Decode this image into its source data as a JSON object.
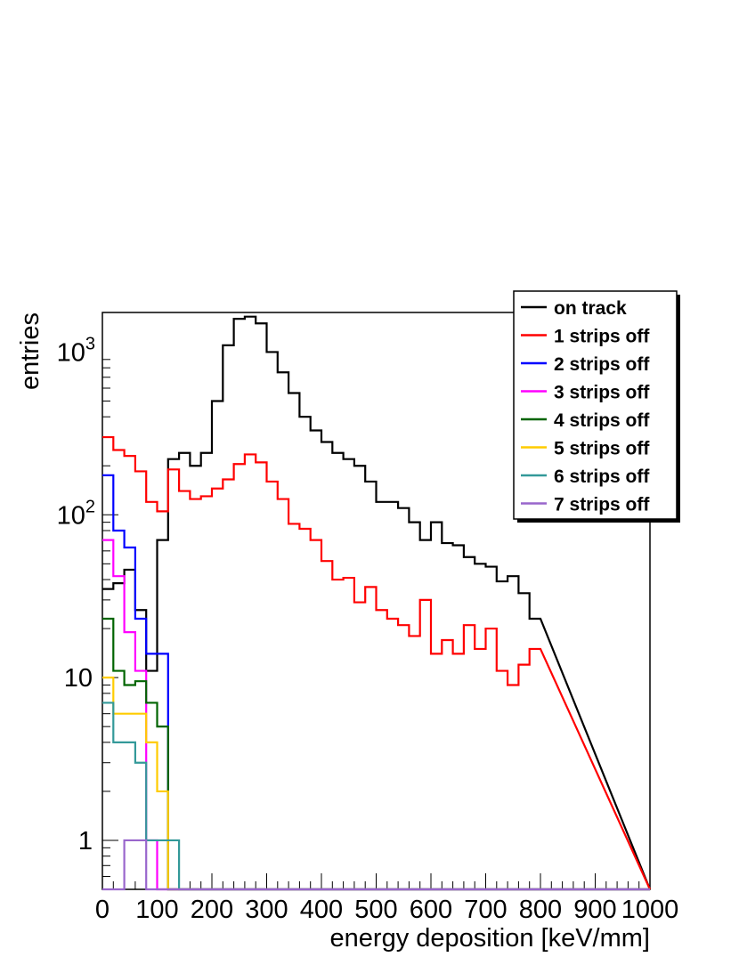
{
  "chart_data": {
    "type": "histogram",
    "xlabel": "energy deposition [keV/mm]",
    "ylabel": "entries",
    "xlim": [
      0,
      1000
    ],
    "ylim": [
      0.5,
      1750
    ],
    "log_y": true,
    "bin_width": 20,
    "x_ticks": [
      {
        "v": 0,
        "label": "0"
      },
      {
        "v": 100,
        "label": "100"
      },
      {
        "v": 200,
        "label": "200"
      },
      {
        "v": 300,
        "label": "300"
      },
      {
        "v": 400,
        "label": "400"
      },
      {
        "v": 500,
        "label": "500"
      },
      {
        "v": 600,
        "label": "600"
      },
      {
        "v": 700,
        "label": "700"
      },
      {
        "v": 800,
        "label": "800"
      },
      {
        "v": 900,
        "label": "900"
      },
      {
        "v": 1000,
        "label": "1000"
      }
    ],
    "y_ticks": [
      {
        "v": 1,
        "base": "1",
        "exp": ""
      },
      {
        "v": 10,
        "base": "10",
        "exp": ""
      },
      {
        "v": 100,
        "base": "10",
        "exp": "2"
      },
      {
        "v": 1000,
        "base": "10",
        "exp": "3"
      }
    ],
    "legend_position": "top-right",
    "series": [
      {
        "name": "on track",
        "color": "#000000",
        "values": [
          35,
          38,
          46,
          26,
          11,
          70,
          220,
          240,
          200,
          240,
          500,
          1100,
          1600,
          1650,
          1500,
          1000,
          750,
          560,
          400,
          330,
          280,
          240,
          220,
          200,
          160,
          120,
          120,
          110,
          90,
          70,
          90,
          67,
          65,
          55,
          50,
          48,
          39,
          42,
          33,
          23
        ]
      },
      {
        "name": "1 strips off",
        "color": "#ff0000",
        "values": [
          300,
          250,
          230,
          185,
          120,
          105,
          190,
          140,
          125,
          130,
          145,
          165,
          205,
          235,
          210,
          160,
          125,
          88,
          82,
          70,
          52,
          40,
          41,
          29,
          36,
          26,
          23,
          21,
          18,
          30,
          14,
          17,
          14,
          21,
          15,
          20,
          11,
          9,
          12,
          15
        ]
      },
      {
        "name": "2 strips off",
        "color": "#0000ff",
        "values": [
          175,
          80,
          63,
          23,
          14,
          14,
          0,
          0,
          0,
          0,
          0,
          0,
          0,
          0,
          0,
          0,
          0,
          0,
          0,
          0,
          0,
          0,
          0,
          0,
          0,
          0,
          0,
          0,
          0,
          0,
          0,
          0,
          0,
          0,
          0,
          0,
          0,
          0,
          0,
          0
        ]
      },
      {
        "name": "3 strips off",
        "color": "#ff00ff",
        "values": [
          70,
          42,
          19,
          11,
          1,
          0,
          0,
          0,
          0,
          0,
          0,
          0,
          0,
          0,
          0,
          0,
          0,
          0,
          0,
          0,
          0,
          0,
          0,
          0,
          0,
          0,
          0,
          0,
          0,
          0,
          0,
          0,
          0,
          0,
          0,
          0,
          0,
          0,
          0,
          0
        ]
      },
      {
        "name": "4 strips off",
        "color": "#006400",
        "values": [
          23,
          11,
          9,
          9.5,
          7,
          5,
          0,
          0,
          0,
          0,
          0,
          0,
          0,
          0,
          0,
          0,
          0,
          0,
          0,
          0,
          0,
          0,
          0,
          0,
          0,
          0,
          0,
          0,
          0,
          0,
          0,
          0,
          0,
          0,
          0,
          0,
          0,
          0,
          0,
          0
        ]
      },
      {
        "name": "5 strips off",
        "color": "#ffcc00",
        "values": [
          10,
          6,
          6,
          6,
          4,
          2,
          0,
          0,
          0,
          0,
          0,
          0,
          0,
          0,
          0,
          0,
          0,
          0,
          0,
          0,
          0,
          0,
          0,
          0,
          0,
          0,
          0,
          0,
          0,
          0,
          0,
          0,
          0,
          0,
          0,
          0,
          0,
          0,
          0,
          0
        ]
      },
      {
        "name": "6 strips off",
        "color": "#339999",
        "values": [
          7,
          4,
          4,
          3,
          1,
          1,
          1,
          0,
          0,
          0,
          0,
          0,
          0,
          0,
          0,
          0,
          0,
          0,
          0,
          0,
          0,
          0,
          0,
          0,
          0,
          0,
          0,
          0,
          0,
          0,
          0,
          0,
          0,
          0,
          0,
          0,
          0,
          0,
          0,
          0
        ]
      },
      {
        "name": "7 strips off",
        "color": "#9966cc",
        "values": [
          0,
          0,
          1,
          1,
          0,
          0,
          0,
          0,
          0,
          0,
          0,
          0,
          0,
          0,
          0,
          0,
          0,
          0,
          0,
          0,
          0,
          0,
          0,
          0,
          0,
          0,
          0,
          0,
          0,
          0,
          0,
          0,
          0,
          0,
          0,
          0,
          0,
          0,
          0,
          0
        ]
      }
    ]
  }
}
